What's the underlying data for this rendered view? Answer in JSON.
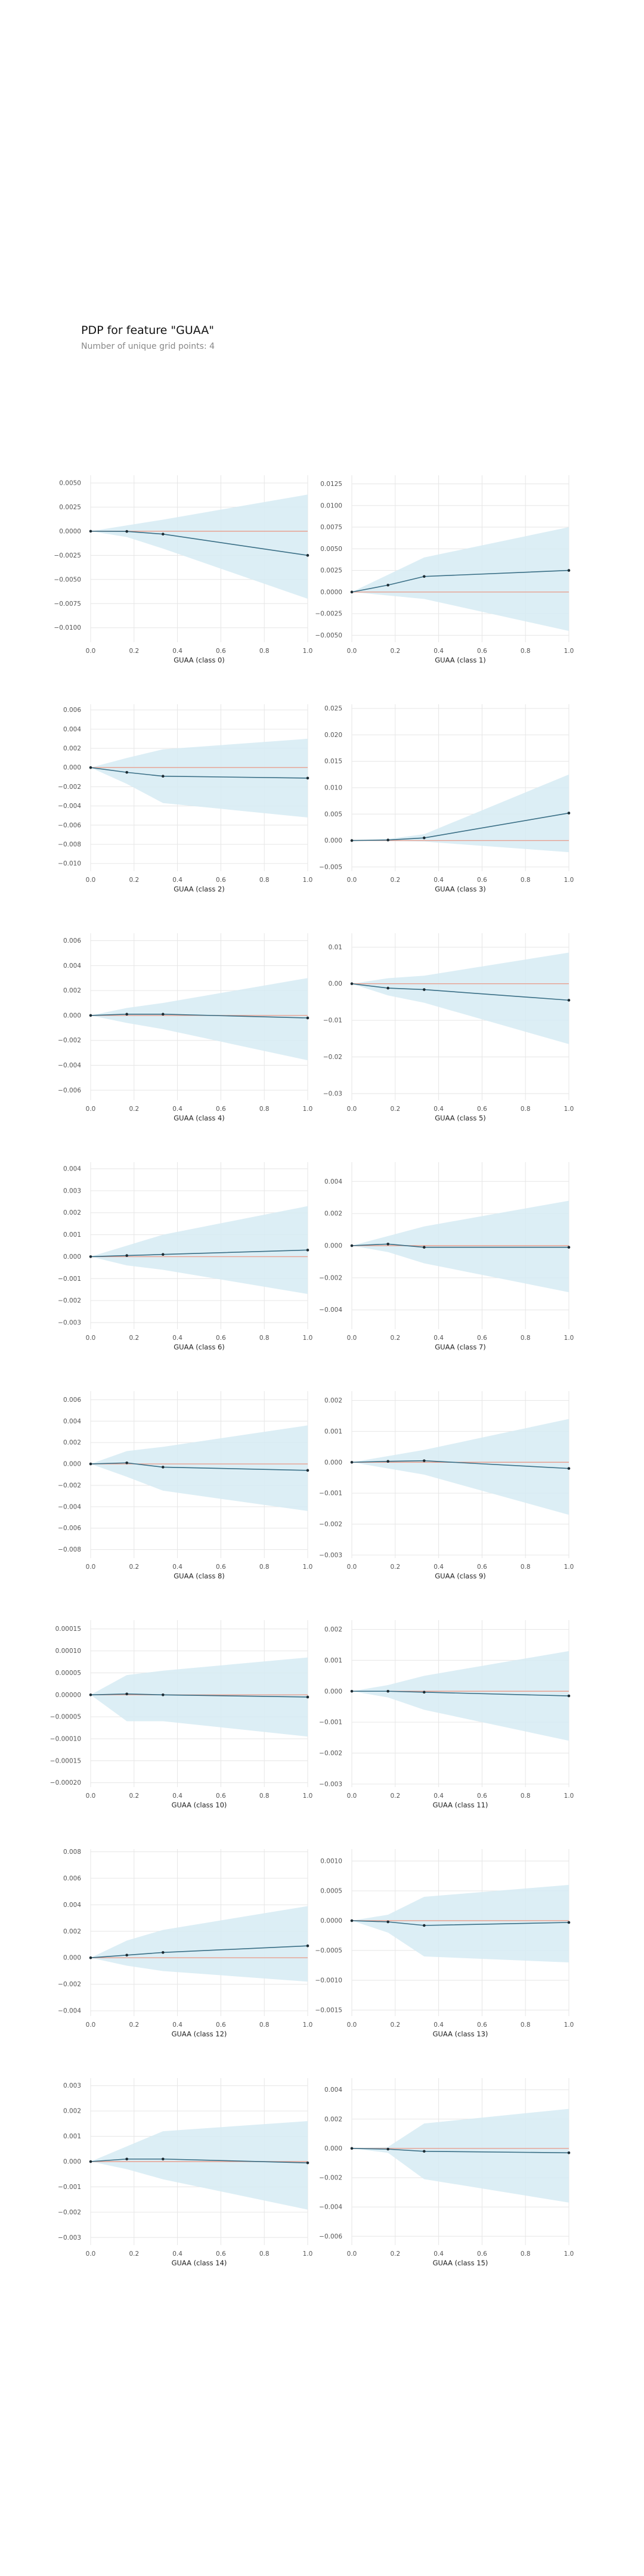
{
  "header": {
    "title": "PDP for feature \"GUAA\"",
    "subtitle": "Number of unique grid points: 4"
  },
  "style": {
    "band_color": "#d6ebf3",
    "line_color": "#3a6f86",
    "baseline_color": "#e8a090",
    "grid_color": "#e6e6e6"
  },
  "chart_data": [
    {
      "type": "line",
      "xlabel": "GUAA (class 0)",
      "x": [
        0,
        0.1667,
        0.3333,
        1.0
      ],
      "y": [
        0,
        -2e-05,
        -0.0003,
        -0.0025
      ],
      "upper": [
        0,
        0.0006,
        0.0012,
        0.0038
      ],
      "lower": [
        0,
        -0.0006,
        -0.0018,
        -0.007
      ],
      "xticks": [
        "0.0",
        "0.2",
        "0.4",
        "0.6",
        "0.8",
        "1.0"
      ],
      "yticks": [
        0.005,
        0.0025,
        0,
        -0.0025,
        -0.005,
        -0.0075,
        -0.01
      ],
      "ytick_labels": [
        "0.0050",
        "0.0025",
        "0.0000",
        "−0.0025",
        "−0.0050",
        "−0.0075",
        "−0.0100"
      ],
      "ylim": [
        -0.0115,
        0.0058
      ]
    },
    {
      "type": "line",
      "xlabel": "GUAA (class 1)",
      "x": [
        0,
        0.1667,
        0.3333,
        1.0
      ],
      "y": [
        0,
        0.0008,
        0.0018,
        0.0025
      ],
      "upper": [
        0,
        0.002,
        0.004,
        0.0075
      ],
      "lower": [
        0,
        -0.0004,
        -0.0008,
        -0.0045
      ],
      "xticks": [
        "0.0",
        "0.2",
        "0.4",
        "0.6",
        "0.8",
        "1.0"
      ],
      "yticks": [
        0.0125,
        0.01,
        0.0075,
        0.005,
        0.0025,
        0,
        -0.0025,
        -0.005
      ],
      "ytick_labels": [
        "0.0125",
        "0.0100",
        "0.0075",
        "0.0050",
        "0.0025",
        "0.0000",
        "−0.0025",
        "−0.0050"
      ],
      "ylim": [
        -0.0058,
        0.0135
      ]
    },
    {
      "type": "line",
      "xlabel": "GUAA (class 2)",
      "x": [
        0,
        0.1667,
        0.3333,
        1.0
      ],
      "y": [
        0,
        -0.0005,
        -0.0009,
        -0.0011
      ],
      "upper": [
        0,
        0.001,
        0.0019,
        0.003
      ],
      "lower": [
        0,
        -0.0017,
        -0.0037,
        -0.0052
      ],
      "xticks": [
        "0.0",
        "0.2",
        "0.4",
        "0.6",
        "0.8",
        "1.0"
      ],
      "yticks": [
        0.006,
        0.004,
        0.002,
        0,
        -0.002,
        -0.004,
        -0.006,
        -0.008,
        -0.01
      ],
      "ytick_labels": [
        "0.006",
        "0.004",
        "0.002",
        "0.000",
        "−0.002",
        "−0.004",
        "−0.006",
        "−0.008",
        "−0.010"
      ],
      "ylim": [
        -0.0108,
        0.0066
      ]
    },
    {
      "type": "line",
      "xlabel": "GUAA (class 3)",
      "x": [
        0,
        0.1667,
        0.3333,
        1.0
      ],
      "y": [
        0,
        0.0001,
        0.0005,
        0.0052
      ],
      "upper": [
        0,
        0.0003,
        0.0012,
        0.0125
      ],
      "lower": [
        0,
        -0.0001,
        -0.0002,
        -0.0022
      ],
      "xticks": [
        "0.0",
        "0.2",
        "0.4",
        "0.6",
        "0.8",
        "1.0"
      ],
      "yticks": [
        0.025,
        0.02,
        0.015,
        0.01,
        0.005,
        0,
        -0.005
      ],
      "ytick_labels": [
        "0.025",
        "0.020",
        "0.015",
        "0.010",
        "0.005",
        "0.000",
        "−0.005"
      ],
      "ylim": [
        -0.0058,
        0.0258
      ]
    },
    {
      "type": "line",
      "xlabel": "GUAA (class 4)",
      "x": [
        0,
        0.1667,
        0.3333,
        1.0
      ],
      "y": [
        0,
        0.0001,
        0.0001,
        -0.0002
      ],
      "upper": [
        0,
        0.0006,
        0.001,
        0.003
      ],
      "lower": [
        0,
        -0.0006,
        -0.0011,
        -0.0036
      ],
      "xticks": [
        "0.0",
        "0.2",
        "0.4",
        "0.6",
        "0.8",
        "1.0"
      ],
      "yticks": [
        0.006,
        0.004,
        0.002,
        0,
        -0.002,
        -0.004,
        -0.006
      ],
      "ytick_labels": [
        "0.006",
        "0.004",
        "0.002",
        "0.000",
        "−0.002",
        "−0.004",
        "−0.006"
      ],
      "ylim": [
        -0.0068,
        0.0066
      ]
    },
    {
      "type": "line",
      "xlabel": "GUAA (class 5)",
      "x": [
        0,
        0.1667,
        0.3333,
        1.0
      ],
      "y": [
        0,
        -0.0012,
        -0.0016,
        -0.0045
      ],
      "upper": [
        0,
        0.0015,
        0.0022,
        0.0085
      ],
      "lower": [
        0,
        -0.0032,
        -0.0052,
        -0.0165
      ],
      "xticks": [
        "0.0",
        "0.2",
        "0.4",
        "0.6",
        "0.8",
        "1.0"
      ],
      "yticks": [
        0.01,
        0,
        -0.01,
        -0.02,
        -0.03
      ],
      "ytick_labels": [
        "0.01",
        "0.00",
        "−0.01",
        "−0.02",
        "−0.03"
      ],
      "ylim": [
        -0.0318,
        0.0138
      ]
    },
    {
      "type": "line",
      "xlabel": "GUAA (class 6)",
      "x": [
        0,
        0.1667,
        0.3333,
        1.0
      ],
      "y": [
        0,
        5e-05,
        0.0001,
        0.0003
      ],
      "upper": [
        0,
        0.0005,
        0.001,
        0.0023
      ],
      "lower": [
        0,
        -0.0004,
        -0.0006,
        -0.0017
      ],
      "xticks": [
        "0.0",
        "0.2",
        "0.4",
        "0.6",
        "0.8",
        "1.0"
      ],
      "yticks": [
        0.004,
        0.003,
        0.002,
        0.001,
        0,
        -0.001,
        -0.002,
        -0.003
      ],
      "ytick_labels": [
        "0.004",
        "0.003",
        "0.002",
        "0.001",
        "0.000",
        "−0.001",
        "−0.002",
        "−0.003"
      ],
      "ylim": [
        -0.0033,
        0.0043
      ]
    },
    {
      "type": "line",
      "xlabel": "GUAA (class 7)",
      "x": [
        0,
        0.1667,
        0.3333,
        1.0
      ],
      "y": [
        0,
        0.0001,
        -0.0001,
        -0.0001
      ],
      "upper": [
        0,
        0.0006,
        0.0012,
        0.0028
      ],
      "lower": [
        0,
        -0.0004,
        -0.0011,
        -0.0029
      ],
      "xticks": [
        "0.0",
        "0.2",
        "0.4",
        "0.6",
        "0.8",
        "1.0"
      ],
      "yticks": [
        0.004,
        0.002,
        0,
        -0.002,
        -0.004
      ],
      "ytick_labels": [
        "0.004",
        "0.002",
        "0.000",
        "−0.002",
        "−0.004"
      ],
      "ylim": [
        -0.0052,
        0.0052
      ]
    },
    {
      "type": "line",
      "xlabel": "GUAA (class 8)",
      "x": [
        0,
        0.1667,
        0.3333,
        1.0
      ],
      "y": [
        0,
        0.0001,
        -0.0003,
        -0.0006
      ],
      "upper": [
        0,
        0.0012,
        0.0016,
        0.0036
      ],
      "lower": [
        0,
        -0.0012,
        -0.0025,
        -0.0044
      ],
      "xticks": [
        "0.0",
        "0.2",
        "0.4",
        "0.6",
        "0.8",
        "1.0"
      ],
      "yticks": [
        0.006,
        0.004,
        0.002,
        0,
        -0.002,
        -0.004,
        -0.006,
        -0.008
      ],
      "ytick_labels": [
        "0.006",
        "0.004",
        "0.002",
        "0.000",
        "−0.002",
        "−0.004",
        "−0.006",
        "−0.008"
      ],
      "ylim": [
        -0.0088,
        0.0068
      ]
    },
    {
      "type": "line",
      "xlabel": "GUAA (class 9)",
      "x": [
        0,
        0.1667,
        0.3333,
        1.0
      ],
      "y": [
        0,
        3e-05,
        5e-05,
        -0.0002
      ],
      "upper": [
        0,
        0.0002,
        0.0004,
        0.0014
      ],
      "lower": [
        0,
        -0.0002,
        -0.0004,
        -0.0017
      ],
      "xticks": [
        "0.0",
        "0.2",
        "0.4",
        "0.6",
        "0.8",
        "1.0"
      ],
      "yticks": [
        0.002,
        0.001,
        0,
        -0.001,
        -0.002,
        -0.003
      ],
      "ytick_labels": [
        "0.002",
        "0.001",
        "0.000",
        "−0.001",
        "−0.002",
        "−0.003"
      ],
      "ylim": [
        -0.0031,
        0.0023
      ]
    },
    {
      "type": "line",
      "xlabel": "GUAA (class 10)",
      "x": [
        0,
        0.1667,
        0.3333,
        1.0
      ],
      "y": [
        0,
        2e-06,
        0,
        -5e-06
      ],
      "upper": [
        0,
        4.5e-05,
        5.5e-05,
        8.5e-05
      ],
      "lower": [
        0,
        -6e-05,
        -6e-05,
        -9.5e-05
      ],
      "xticks": [
        "0.0",
        "0.2",
        "0.4",
        "0.6",
        "0.8",
        "1.0"
      ],
      "yticks": [
        0.00015,
        0.0001,
        5e-05,
        0,
        -5e-05,
        -0.0001,
        -0.00015,
        -0.0002
      ],
      "ytick_labels": [
        "0.00015",
        "0.00010",
        "0.00005",
        "0.00000",
        "−0.00005",
        "−0.00010",
        "−0.00015",
        "−0.00020"
      ],
      "ylim": [
        -0.00021,
        0.00017
      ]
    },
    {
      "type": "line",
      "xlabel": "GUAA (class 11)",
      "x": [
        0,
        0.1667,
        0.3333,
        1.0
      ],
      "y": [
        0,
        0,
        -3e-05,
        -0.00015
      ],
      "upper": [
        0,
        0.0002,
        0.0005,
        0.0013
      ],
      "lower": [
        0,
        -0.0002,
        -0.0006,
        -0.0016
      ],
      "xticks": [
        "0.0",
        "0.2",
        "0.4",
        "0.6",
        "0.8",
        "1.0"
      ],
      "yticks": [
        0.002,
        0.001,
        0,
        -0.001,
        -0.002,
        -0.003
      ],
      "ytick_labels": [
        "0.002",
        "0.001",
        "0.000",
        "−0.001",
        "−0.002",
        "−0.003"
      ],
      "ylim": [
        -0.0031,
        0.0023
      ]
    },
    {
      "type": "line",
      "xlabel": "GUAA (class 12)",
      "x": [
        0,
        0.1667,
        0.3333,
        1.0
      ],
      "y": [
        0,
        0.0002,
        0.0004,
        0.0009
      ],
      "upper": [
        0,
        0.0013,
        0.0021,
        0.0039
      ],
      "lower": [
        0,
        -0.0006,
        -0.001,
        -0.0018
      ],
      "xticks": [
        "0.0",
        "0.2",
        "0.4",
        "0.6",
        "0.8",
        "1.0"
      ],
      "yticks": [
        0.008,
        0.006,
        0.004,
        0.002,
        0,
        -0.002,
        -0.004
      ],
      "ytick_labels": [
        "0.008",
        "0.006",
        "0.004",
        "0.002",
        "0.000",
        "−0.002",
        "−0.004"
      ],
      "ylim": [
        -0.0044,
        0.0082
      ]
    },
    {
      "type": "line",
      "xlabel": "GUAA (class 13)",
      "x": [
        0,
        0.1667,
        0.3333,
        1.0
      ],
      "y": [
        0,
        -2e-05,
        -8e-05,
        -3e-05
      ],
      "upper": [
        0,
        0.0001,
        0.0004,
        0.0006
      ],
      "lower": [
        0,
        -0.0002,
        -0.0006,
        -0.0007
      ],
      "xticks": [
        "0.0",
        "0.2",
        "0.4",
        "0.6",
        "0.8",
        "1.0"
      ],
      "yticks": [
        0.001,
        0.0005,
        0,
        -0.0005,
        -0.001,
        -0.0015
      ],
      "ytick_labels": [
        "0.0010",
        "0.0005",
        "0.0000",
        "−0.0005",
        "−0.0010",
        "−0.0015"
      ],
      "ylim": [
        -0.0016,
        0.0012
      ]
    },
    {
      "type": "line",
      "xlabel": "GUAA (class 14)",
      "x": [
        0,
        0.1667,
        0.3333,
        1.0
      ],
      "y": [
        0,
        0.0001,
        0.0001,
        -5e-05
      ],
      "upper": [
        0,
        0.0006,
        0.0012,
        0.0016
      ],
      "lower": [
        0,
        -0.0003,
        -0.0007,
        -0.0019
      ],
      "xticks": [
        "0.0",
        "0.2",
        "0.4",
        "0.6",
        "0.8",
        "1.0"
      ],
      "yticks": [
        0.003,
        0.002,
        0.001,
        0,
        -0.001,
        -0.002,
        -0.003
      ],
      "ytick_labels": [
        "0.003",
        "0.002",
        "0.001",
        "0.000",
        "−0.001",
        "−0.002",
        "−0.003"
      ],
      "ylim": [
        -0.0033,
        0.0033
      ]
    },
    {
      "type": "line",
      "xlabel": "GUAA (class 15)",
      "x": [
        0,
        0.1667,
        0.3333,
        1.0
      ],
      "y": [
        0,
        -5e-05,
        -0.0002,
        -0.0003
      ],
      "upper": [
        0,
        0.0001,
        0.0017,
        0.0027
      ],
      "lower": [
        0,
        -0.0003,
        -0.0021,
        -0.0037
      ],
      "xticks": [
        "0.0",
        "0.2",
        "0.4",
        "0.6",
        "0.8",
        "1.0"
      ],
      "yticks": [
        0.004,
        0.002,
        0,
        -0.002,
        -0.004,
        -0.006
      ],
      "ytick_labels": [
        "0.004",
        "0.002",
        "0.000",
        "−0.002",
        "−0.004",
        "−0.006"
      ],
      "ylim": [
        -0.0066,
        0.0048
      ]
    }
  ]
}
